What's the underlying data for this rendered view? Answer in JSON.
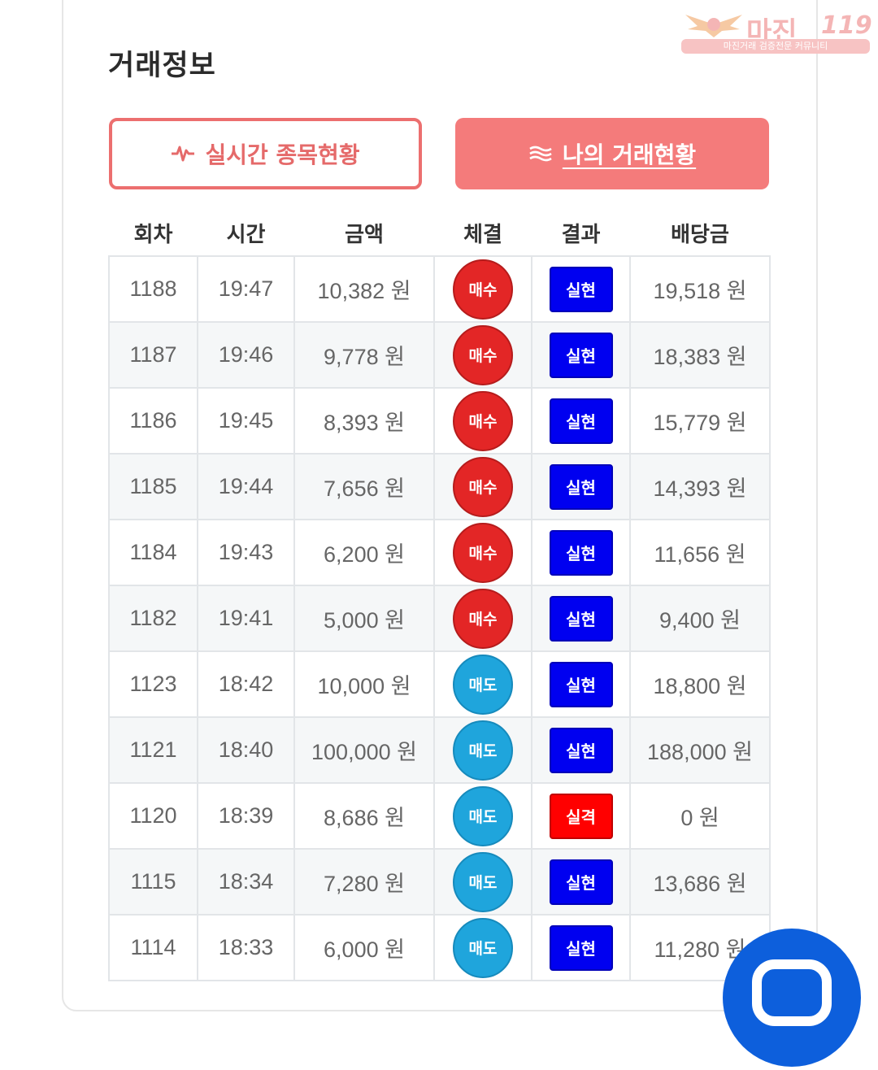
{
  "title": "거래정보",
  "watermark": {
    "brand": "마진",
    "number": "119",
    "sub": "마진거래 검증전문 커뮤니티"
  },
  "buttons": {
    "live": {
      "label": "실시간 종목현황",
      "icon": "pulse-icon"
    },
    "mine": {
      "label": "나의 거래현황",
      "icon": "waves-icon"
    }
  },
  "columns": [
    "회차",
    "시간",
    "금액",
    "체결",
    "결과",
    "배당금"
  ],
  "rows": [
    {
      "round": "1188",
      "time": "19:47",
      "amount": "10,382 원",
      "side": "매수",
      "result": "실현",
      "payout": "19,518 원"
    },
    {
      "round": "1187",
      "time": "19:46",
      "amount": "9,778 원",
      "side": "매수",
      "result": "실현",
      "payout": "18,383 원"
    },
    {
      "round": "1186",
      "time": "19:45",
      "amount": "8,393 원",
      "side": "매수",
      "result": "실현",
      "payout": "15,779 원"
    },
    {
      "round": "1185",
      "time": "19:44",
      "amount": "7,656 원",
      "side": "매수",
      "result": "실현",
      "payout": "14,393 원"
    },
    {
      "round": "1184",
      "time": "19:43",
      "amount": "6,200 원",
      "side": "매수",
      "result": "실현",
      "payout": "11,656 원"
    },
    {
      "round": "1182",
      "time": "19:41",
      "amount": "5,000 원",
      "side": "매수",
      "result": "실현",
      "payout": "9,400 원"
    },
    {
      "round": "1123",
      "time": "18:42",
      "amount": "10,000 원",
      "side": "매도",
      "result": "실현",
      "payout": "18,800 원"
    },
    {
      "round": "1121",
      "time": "18:40",
      "amount": "100,000 원",
      "side": "매도",
      "result": "실현",
      "payout": "188,000 원"
    },
    {
      "round": "1120",
      "time": "18:39",
      "amount": "8,686 원",
      "side": "매도",
      "result": "실격",
      "payout": "0 원"
    },
    {
      "round": "1115",
      "time": "18:34",
      "amount": "7,280 원",
      "side": "매도",
      "result": "실현",
      "payout": "13,686 원"
    },
    {
      "round": "1114",
      "time": "18:33",
      "amount": "6,000 원",
      "side": "매도",
      "result": "실현",
      "payout": "11,280 원"
    }
  ],
  "colors": {
    "buy": "#e32626",
    "sell": "#1fa5dc",
    "win": "#0000f0",
    "lose": "#ff0000",
    "accent": "#f47b7b"
  }
}
